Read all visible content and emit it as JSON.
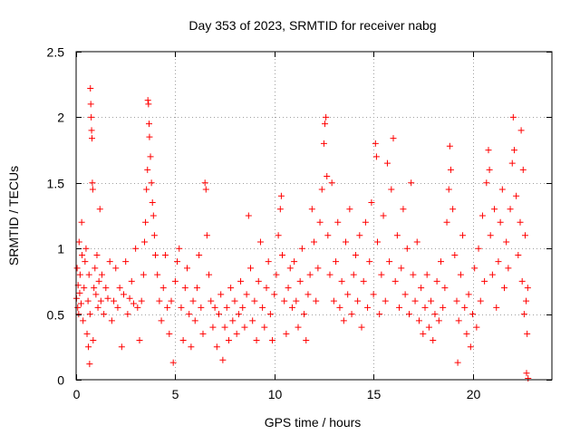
{
  "chart_data": {
    "type": "scatter",
    "title": "Day 353 of 2023, SRMTID for receiver nabg",
    "xlabel": "GPS time / hours",
    "ylabel": "SRMTID / TECUs",
    "xlim": [
      0,
      24
    ],
    "ylim": [
      0,
      2.5
    ],
    "xticks": [
      0,
      5,
      10,
      15,
      20
    ],
    "xtick_labels": [
      "0",
      "5",
      "10",
      "15",
      "20"
    ],
    "yticks": [
      0,
      0.5,
      1,
      1.5,
      2,
      2.5
    ],
    "ytick_labels": [
      "0",
      "0.5",
      "1",
      "1.5",
      "2",
      "2.5"
    ],
    "grid": true,
    "marker": "plus",
    "color": "#ff0000",
    "series": [
      {
        "name": "SRMTID",
        "points": [
          [
            0.02,
            0.62
          ],
          [
            0.05,
            0.85
          ],
          [
            0.08,
            0.55
          ],
          [
            0.1,
            0.72
          ],
          [
            0.13,
            0.5
          ],
          [
            0.15,
            1.05
          ],
          [
            0.18,
            0.66
          ],
          [
            0.2,
            0.8
          ],
          [
            0.25,
            0.58
          ],
          [
            0.28,
            1.2
          ],
          [
            0.3,
            0.95
          ],
          [
            0.35,
            0.45
          ],
          [
            0.4,
            0.7
          ],
          [
            0.45,
            0.9
          ],
          [
            0.5,
            1.0
          ],
          [
            0.55,
            0.35
          ],
          [
            0.6,
            0.6
          ],
          [
            0.62,
            0.25
          ],
          [
            0.65,
            0.8
          ],
          [
            0.68,
            0.12
          ],
          [
            0.7,
            0.5
          ],
          [
            0.72,
            2.22
          ],
          [
            0.74,
            2.1
          ],
          [
            0.76,
            2.0
          ],
          [
            0.78,
            1.9
          ],
          [
            0.8,
            1.84
          ],
          [
            0.82,
            1.5
          ],
          [
            0.84,
            1.45
          ],
          [
            0.86,
            0.3
          ],
          [
            0.9,
            0.7
          ],
          [
            0.95,
            0.85
          ],
          [
            1.0,
            0.65
          ],
          [
            1.05,
            0.95
          ],
          [
            1.1,
            0.55
          ],
          [
            1.15,
            0.75
          ],
          [
            1.2,
            1.3
          ],
          [
            1.25,
            0.6
          ],
          [
            1.3,
            0.8
          ],
          [
            1.4,
            0.5
          ],
          [
            1.5,
            0.7
          ],
          [
            1.6,
            0.62
          ],
          [
            1.7,
            0.9
          ],
          [
            1.8,
            0.45
          ],
          [
            1.9,
            0.6
          ],
          [
            2.0,
            0.85
          ],
          [
            2.1,
            0.55
          ],
          [
            2.2,
            0.7
          ],
          [
            2.3,
            0.25
          ],
          [
            2.4,
            0.65
          ],
          [
            2.5,
            0.9
          ],
          [
            2.6,
            0.5
          ],
          [
            2.7,
            0.62
          ],
          [
            2.8,
            0.75
          ],
          [
            2.9,
            0.58
          ],
          [
            3.0,
            1.0
          ],
          [
            3.1,
            0.55
          ],
          [
            3.2,
            0.3
          ],
          [
            3.3,
            0.6
          ],
          [
            3.4,
            0.8
          ],
          [
            3.45,
            1.05
          ],
          [
            3.5,
            1.2
          ],
          [
            3.55,
            1.45
          ],
          [
            3.6,
            1.6
          ],
          [
            3.62,
            2.13
          ],
          [
            3.65,
            2.1
          ],
          [
            3.68,
            1.95
          ],
          [
            3.7,
            1.85
          ],
          [
            3.75,
            1.7
          ],
          [
            3.8,
            1.5
          ],
          [
            3.85,
            1.35
          ],
          [
            3.9,
            1.25
          ],
          [
            3.95,
            1.1
          ],
          [
            4.0,
            0.95
          ],
          [
            4.1,
            0.8
          ],
          [
            4.2,
            0.6
          ],
          [
            4.3,
            0.45
          ],
          [
            4.4,
            0.7
          ],
          [
            4.5,
            0.95
          ],
          [
            4.6,
            0.55
          ],
          [
            4.7,
            0.35
          ],
          [
            4.8,
            0.6
          ],
          [
            4.9,
            0.13
          ],
          [
            5.0,
            0.75
          ],
          [
            5.1,
            0.9
          ],
          [
            5.2,
            1.0
          ],
          [
            5.3,
            0.55
          ],
          [
            5.4,
            0.3
          ],
          [
            5.5,
            0.7
          ],
          [
            5.6,
            0.85
          ],
          [
            5.7,
            0.5
          ],
          [
            5.8,
            0.25
          ],
          [
            5.9,
            0.6
          ],
          [
            6.0,
            0.45
          ],
          [
            6.1,
            0.7
          ],
          [
            6.2,
            0.95
          ],
          [
            6.3,
            0.55
          ],
          [
            6.4,
            0.35
          ],
          [
            6.5,
            1.5
          ],
          [
            6.55,
            1.45
          ],
          [
            6.6,
            1.1
          ],
          [
            6.7,
            0.8
          ],
          [
            6.8,
            0.6
          ],
          [
            6.9,
            0.4
          ],
          [
            7.0,
            0.55
          ],
          [
            7.1,
            0.25
          ],
          [
            7.2,
            0.5
          ],
          [
            7.3,
            0.65
          ],
          [
            7.4,
            0.15
          ],
          [
            7.5,
            0.4
          ],
          [
            7.6,
            0.55
          ],
          [
            7.7,
            0.3
          ],
          [
            7.8,
            0.7
          ],
          [
            7.9,
            0.45
          ],
          [
            8.0,
            0.6
          ],
          [
            8.1,
            0.35
          ],
          [
            8.2,
            0.5
          ],
          [
            8.3,
            0.75
          ],
          [
            8.4,
            0.55
          ],
          [
            8.5,
            0.4
          ],
          [
            8.6,
            0.65
          ],
          [
            8.7,
            1.25
          ],
          [
            8.8,
            0.85
          ],
          [
            8.9,
            0.45
          ],
          [
            9.0,
            0.6
          ],
          [
            9.1,
            0.3
          ],
          [
            9.2,
            0.75
          ],
          [
            9.3,
            1.05
          ],
          [
            9.4,
            0.55
          ],
          [
            9.5,
            0.4
          ],
          [
            9.6,
            0.7
          ],
          [
            9.7,
            0.9
          ],
          [
            9.8,
            0.5
          ],
          [
            9.9,
            0.3
          ],
          [
            10.0,
            0.65
          ],
          [
            10.1,
            0.8
          ],
          [
            10.2,
            1.1
          ],
          [
            10.3,
            1.3
          ],
          [
            10.35,
            1.4
          ],
          [
            10.4,
            0.95
          ],
          [
            10.5,
            0.6
          ],
          [
            10.6,
            0.35
          ],
          [
            10.7,
            0.7
          ],
          [
            10.8,
            0.85
          ],
          [
            10.9,
            0.55
          ],
          [
            11.0,
            0.9
          ],
          [
            11.1,
            0.6
          ],
          [
            11.2,
            0.4
          ],
          [
            11.3,
            0.75
          ],
          [
            11.4,
            1.0
          ],
          [
            11.5,
            0.5
          ],
          [
            11.6,
            0.3
          ],
          [
            11.7,
            0.65
          ],
          [
            11.8,
            0.8
          ],
          [
            11.9,
            1.3
          ],
          [
            12.0,
            1.05
          ],
          [
            12.1,
            0.6
          ],
          [
            12.2,
            0.85
          ],
          [
            12.3,
            1.2
          ],
          [
            12.4,
            1.45
          ],
          [
            12.5,
            1.8
          ],
          [
            12.55,
            1.95
          ],
          [
            12.6,
            2.0
          ],
          [
            12.65,
            1.55
          ],
          [
            12.7,
            1.1
          ],
          [
            12.8,
            0.8
          ],
          [
            12.9,
            1.5
          ],
          [
            13.0,
            0.6
          ],
          [
            13.1,
            0.9
          ],
          [
            13.2,
            1.2
          ],
          [
            13.3,
            0.55
          ],
          [
            13.4,
            0.75
          ],
          [
            13.5,
            0.45
          ],
          [
            13.6,
            1.05
          ],
          [
            13.7,
            0.65
          ],
          [
            13.8,
            1.3
          ],
          [
            13.9,
            0.5
          ],
          [
            14.0,
            0.8
          ],
          [
            14.1,
            0.95
          ],
          [
            14.2,
            0.6
          ],
          [
            14.3,
            1.1
          ],
          [
            14.4,
            0.4
          ],
          [
            14.5,
            0.75
          ],
          [
            14.6,
            1.2
          ],
          [
            14.7,
            0.55
          ],
          [
            14.8,
            0.9
          ],
          [
            14.9,
            1.35
          ],
          [
            15.0,
            0.65
          ],
          [
            15.1,
            1.8
          ],
          [
            15.15,
            1.7
          ],
          [
            15.2,
            1.05
          ],
          [
            15.3,
            0.5
          ],
          [
            15.4,
            0.8
          ],
          [
            15.5,
            1.25
          ],
          [
            15.6,
            0.6
          ],
          [
            15.7,
            1.65
          ],
          [
            15.8,
            0.9
          ],
          [
            15.9,
            1.45
          ],
          [
            16.0,
            1.84
          ],
          [
            16.1,
            0.75
          ],
          [
            16.2,
            1.1
          ],
          [
            16.3,
            0.55
          ],
          [
            16.4,
            0.85
          ],
          [
            16.5,
            1.3
          ],
          [
            16.6,
            0.65
          ],
          [
            16.7,
            1.0
          ],
          [
            16.8,
            0.5
          ],
          [
            16.9,
            1.5
          ],
          [
            17.0,
            0.8
          ],
          [
            17.1,
            0.6
          ],
          [
            17.2,
            1.05
          ],
          [
            17.3,
            0.45
          ],
          [
            17.4,
            0.7
          ],
          [
            17.5,
            0.35
          ],
          [
            17.6,
            0.55
          ],
          [
            17.7,
            0.8
          ],
          [
            17.8,
            0.4
          ],
          [
            17.9,
            0.6
          ],
          [
            18.0,
            0.3
          ],
          [
            18.1,
            0.5
          ],
          [
            18.2,
            0.75
          ],
          [
            18.3,
            0.45
          ],
          [
            18.4,
            0.9
          ],
          [
            18.5,
            0.55
          ],
          [
            18.6,
            0.7
          ],
          [
            18.7,
            1.2
          ],
          [
            18.8,
            1.45
          ],
          [
            18.85,
            1.78
          ],
          [
            18.9,
            1.6
          ],
          [
            19.0,
            1.3
          ],
          [
            19.1,
            0.95
          ],
          [
            19.2,
            0.6
          ],
          [
            19.25,
            0.13
          ],
          [
            19.3,
            0.45
          ],
          [
            19.4,
            0.8
          ],
          [
            19.5,
            1.1
          ],
          [
            19.6,
            0.55
          ],
          [
            19.7,
            0.35
          ],
          [
            19.8,
            0.65
          ],
          [
            19.9,
            0.25
          ],
          [
            20.0,
            0.5
          ],
          [
            20.1,
            0.85
          ],
          [
            20.2,
            0.4
          ],
          [
            20.3,
            1.0
          ],
          [
            20.4,
            0.6
          ],
          [
            20.5,
            1.25
          ],
          [
            20.6,
            0.75
          ],
          [
            20.7,
            1.5
          ],
          [
            20.8,
            1.75
          ],
          [
            20.85,
            1.6
          ],
          [
            20.9,
            1.1
          ],
          [
            21.0,
            0.8
          ],
          [
            21.1,
            1.3
          ],
          [
            21.2,
            0.55
          ],
          [
            21.3,
            0.9
          ],
          [
            21.4,
            1.2
          ],
          [
            21.5,
            1.45
          ],
          [
            21.6,
            0.7
          ],
          [
            21.7,
            1.05
          ],
          [
            21.8,
            0.85
          ],
          [
            21.9,
            1.3
          ],
          [
            22.0,
            1.65
          ],
          [
            22.05,
            2.0
          ],
          [
            22.1,
            1.75
          ],
          [
            22.2,
            1.4
          ],
          [
            22.3,
            0.95
          ],
          [
            22.4,
            1.2
          ],
          [
            22.45,
            1.9
          ],
          [
            22.5,
            0.75
          ],
          [
            22.55,
            1.6
          ],
          [
            22.6,
            0.5
          ],
          [
            22.65,
            1.1
          ],
          [
            22.7,
            0.6
          ],
          [
            22.72,
            0.05
          ],
          [
            22.75,
            0.35
          ],
          [
            22.78,
            0.7
          ],
          [
            22.8,
            0.01
          ]
        ]
      }
    ]
  }
}
